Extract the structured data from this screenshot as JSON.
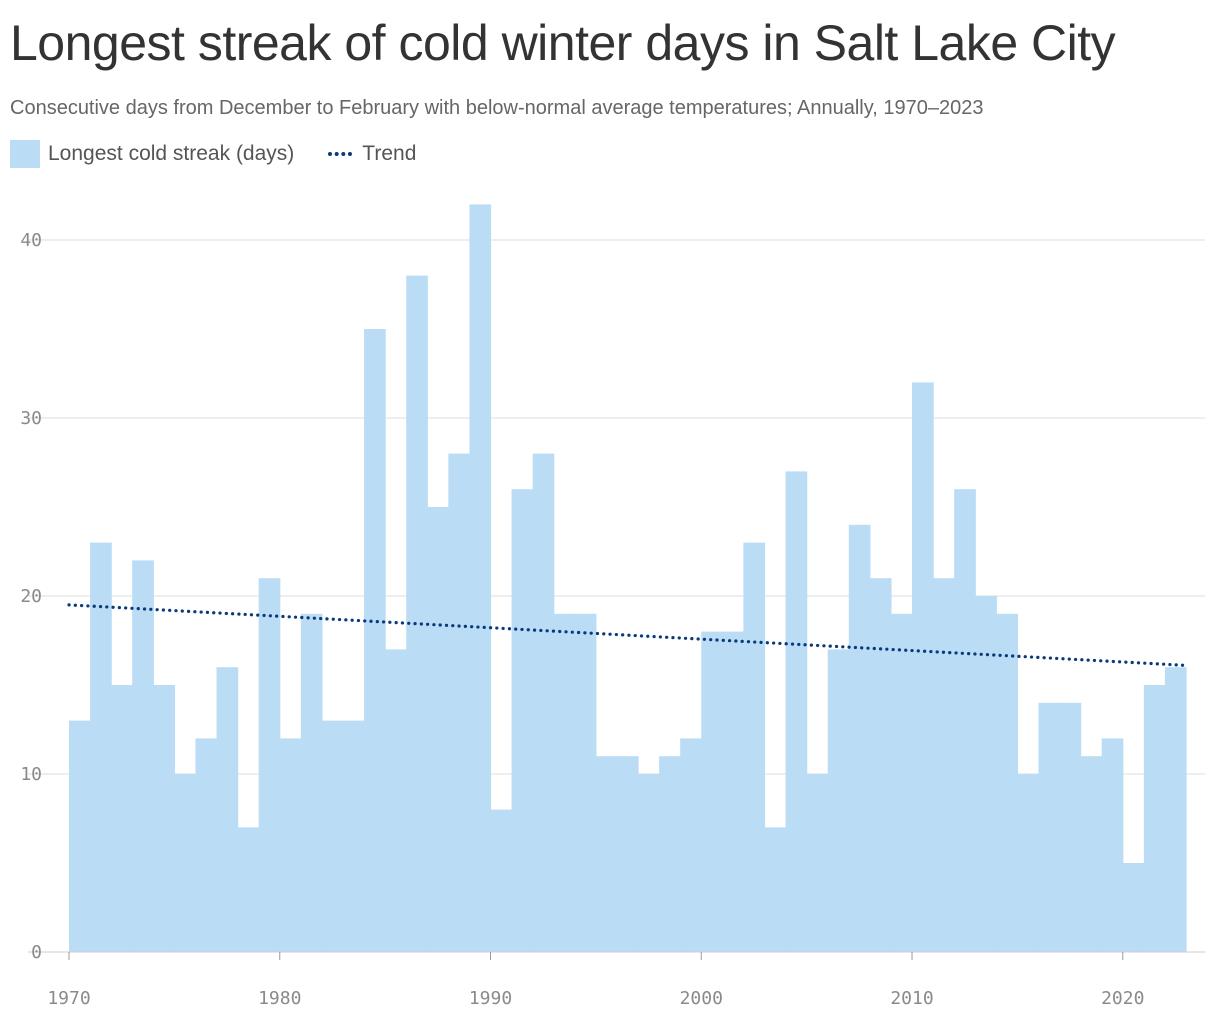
{
  "chart_data": {
    "type": "bar",
    "title": "Longest streak of cold winter days in Salt Lake City",
    "subtitle": "Consecutive days from December to February with below-normal average temperatures; Annually, 1970–2023",
    "legend": {
      "bars": "Longest cold streak (days)",
      "trend": "Trend",
      "placement": "top-left"
    },
    "years": [
      1970,
      1971,
      1972,
      1973,
      1974,
      1975,
      1976,
      1977,
      1978,
      1979,
      1980,
      1981,
      1982,
      1983,
      1984,
      1985,
      1986,
      1987,
      1988,
      1989,
      1990,
      1991,
      1992,
      1993,
      1994,
      1995,
      1996,
      1997,
      1998,
      1999,
      2000,
      2001,
      2002,
      2003,
      2004,
      2005,
      2006,
      2007,
      2008,
      2009,
      2010,
      2011,
      2012,
      2013,
      2014,
      2015,
      2016,
      2017,
      2018,
      2019,
      2020,
      2021,
      2022
    ],
    "values": [
      13,
      23,
      15,
      22,
      15,
      10,
      12,
      16,
      7,
      21,
      12,
      19,
      13,
      13,
      35,
      17,
      38,
      25,
      28,
      42,
      8,
      26,
      28,
      19,
      19,
      11,
      11,
      10,
      11,
      12,
      18,
      18,
      23,
      7,
      27,
      10,
      17,
      24,
      21,
      19,
      32,
      21,
      26,
      20,
      19,
      10,
      14,
      14,
      11,
      12,
      5,
      15,
      16
    ],
    "trend": {
      "start": [
        1970,
        19.5
      ],
      "end": [
        2023,
        16.1
      ]
    },
    "xlim": [
      1970,
      2023
    ],
    "ylim": [
      0,
      42
    ],
    "yticks": [
      0,
      10,
      20,
      30,
      40
    ],
    "xticks": [
      1970,
      1980,
      1990,
      2000,
      2010,
      2020
    ],
    "grid": "horizontal",
    "colors": {
      "bars": "#bbdcf5",
      "trend": "#0b3a7a",
      "grid": "#dddddd",
      "axis": "#cccccc"
    }
  }
}
